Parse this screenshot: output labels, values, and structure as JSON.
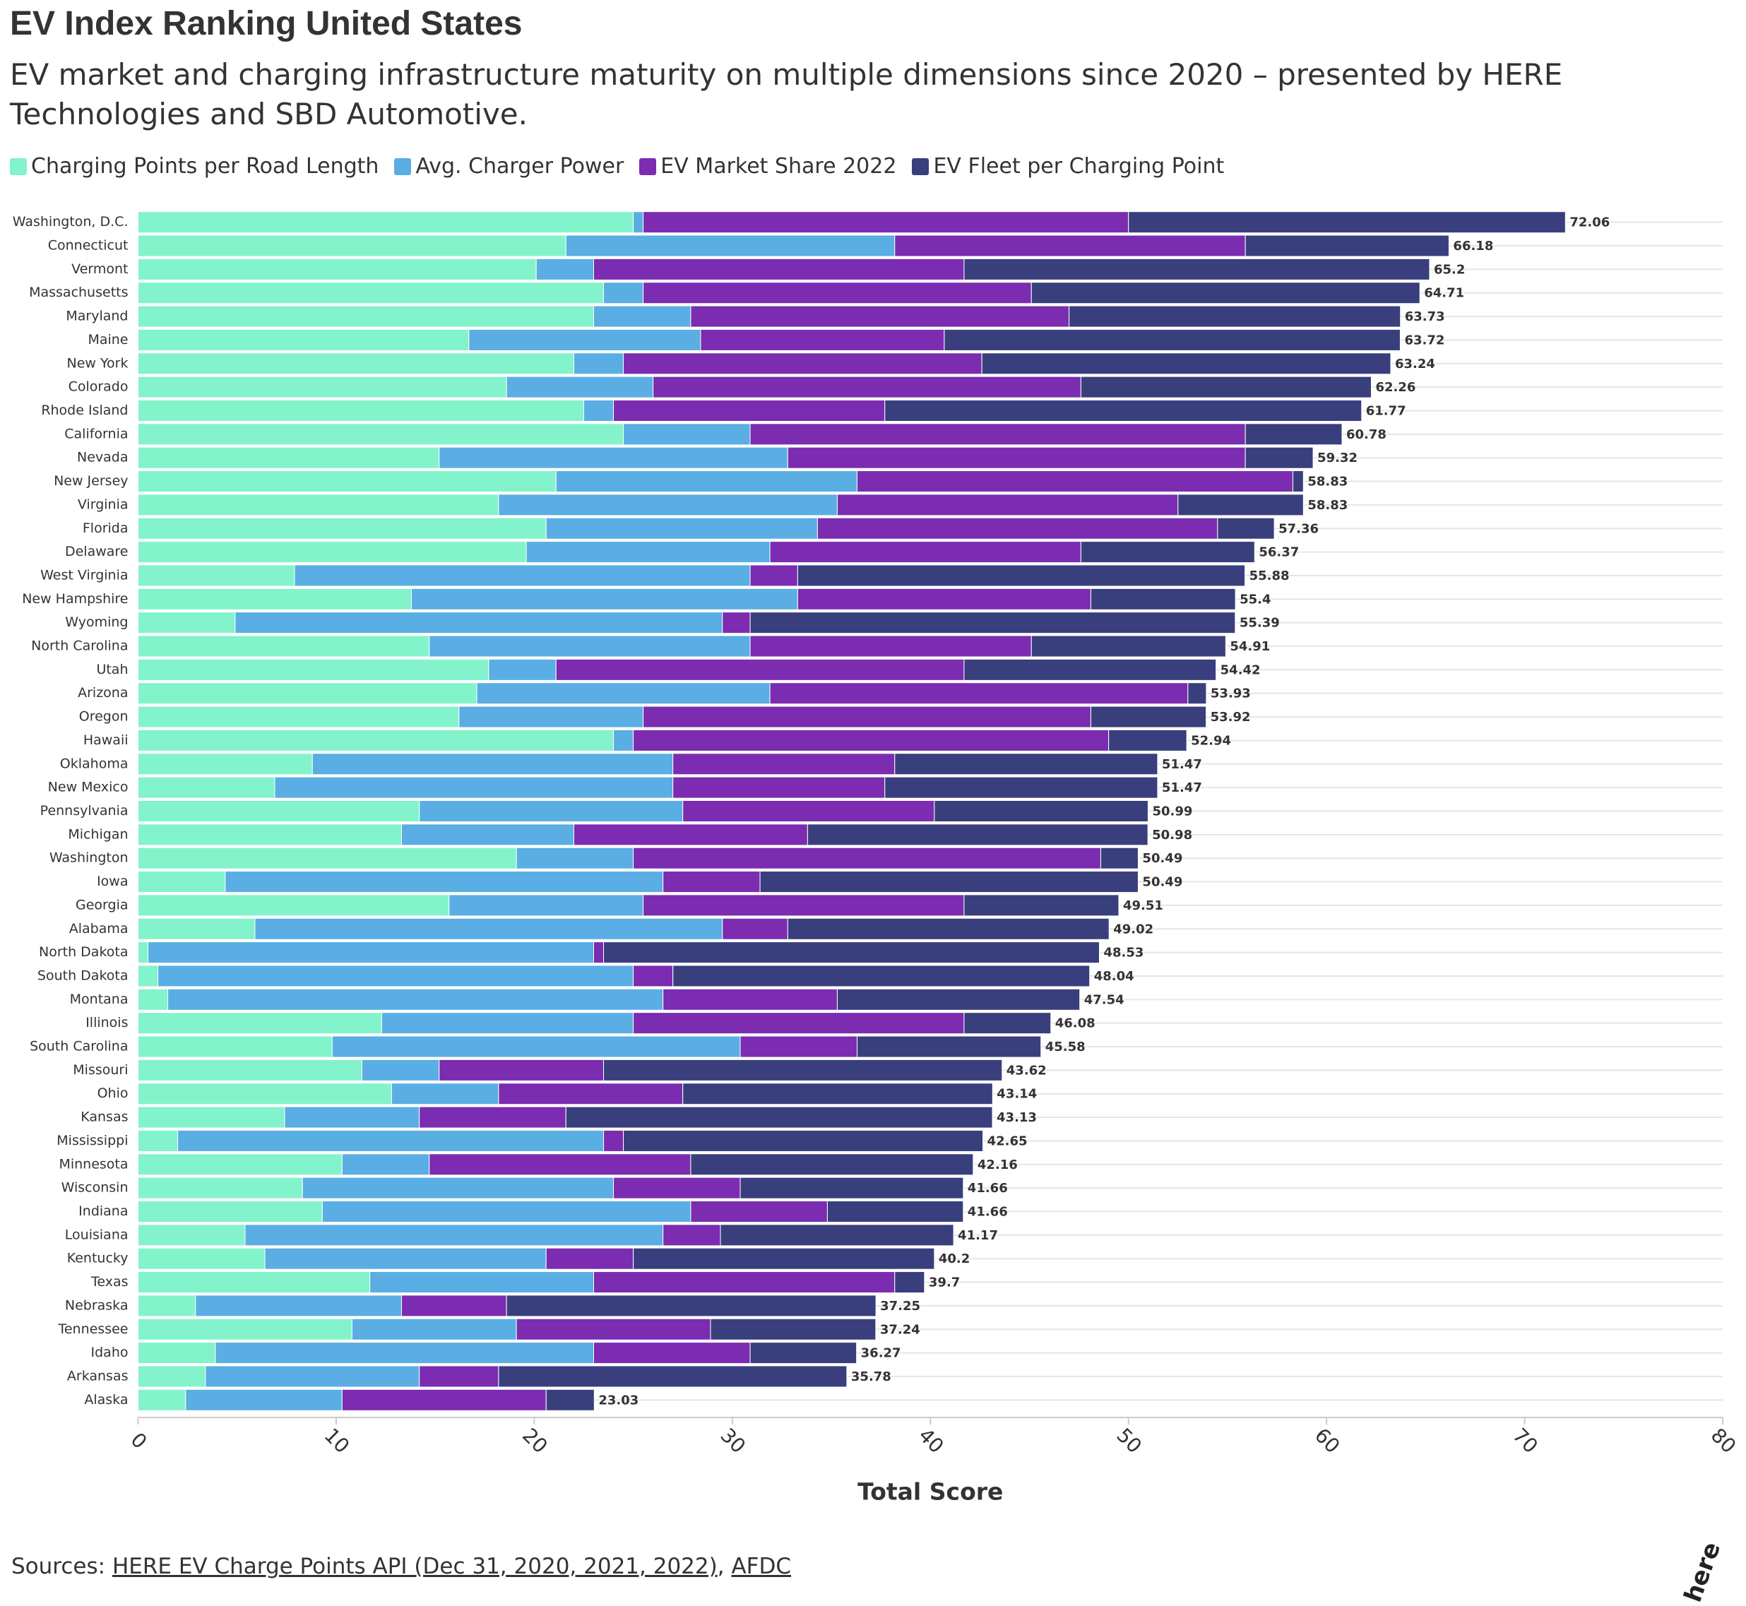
{
  "chart_data": {
    "type": "stacked_bar_horizontal",
    "title": "EV Index Ranking United States",
    "subtitle": "EV market and charging infrastructure maturity on multiple dimensions since 2020 – presented by HERE Technologies and SBD Automotive.",
    "x_label": "Total Score",
    "categories": [
      "Washington, D.C.",
      "Connecticut",
      "Vermont",
      "Massachusetts",
      "Maryland",
      "Maine",
      "New York",
      "Colorado",
      "Rhode Island",
      "California",
      "Nevada",
      "New Jersey",
      "Virginia",
      "Florida",
      "Delaware",
      "West Virginia",
      "New Hampshire",
      "Wyoming",
      "North Carolina",
      "Utah",
      "Arizona",
      "Oregon",
      "Hawaii",
      "Oklahoma",
      "New Mexico",
      "Pennsylvania",
      "Michigan",
      "Washington",
      "Iowa",
      "Georgia",
      "Alabama",
      "North Dakota",
      "South Dakota",
      "Montana",
      "Illinois",
      "South Carolina",
      "Missouri",
      "Ohio",
      "Kansas",
      "Mississippi",
      "Minnesota",
      "Wisconsin",
      "Indiana",
      "Louisiana",
      "Kentucky",
      "Texas",
      "Nebraska",
      "Tennessee",
      "Idaho",
      "Arkansas",
      "Alaska"
    ],
    "series": [
      {
        "name": "Charging Points per Road Length",
        "color": "#83f3cb",
        "values": [
          25.0,
          21.6,
          20.1,
          23.5,
          23.0,
          16.7,
          22.0,
          18.6,
          22.5,
          24.5,
          15.2,
          21.1,
          18.2,
          20.6,
          19.6,
          7.9,
          13.8,
          4.9,
          14.7,
          17.7,
          17.1,
          16.2,
          24.0,
          8.8,
          6.9,
          14.2,
          13.3,
          19.1,
          4.4,
          15.7,
          5.9,
          0.5,
          1.0,
          1.5,
          12.3,
          9.8,
          11.3,
          12.8,
          7.4,
          2.0,
          10.3,
          8.3,
          9.3,
          5.4,
          6.4,
          11.7,
          2.9,
          10.8,
          3.9,
          3.4,
          2.4
        ]
      },
      {
        "name": "Avg. Charger Power",
        "color": "#5aaee3",
        "values": [
          0.5,
          16.6,
          2.9,
          2.0,
          4.9,
          11.7,
          2.5,
          7.4,
          1.5,
          6.4,
          17.6,
          15.2,
          17.1,
          13.7,
          12.3,
          23.0,
          19.5,
          24.6,
          16.2,
          3.4,
          14.8,
          9.3,
          1.0,
          18.2,
          20.1,
          13.3,
          8.7,
          5.9,
          22.1,
          9.8,
          23.6,
          22.5,
          24.0,
          25.0,
          12.7,
          20.6,
          3.9,
          5.4,
          6.8,
          21.5,
          4.4,
          15.7,
          18.6,
          21.1,
          14.2,
          11.3,
          10.4,
          8.3,
          19.1,
          10.8,
          7.9
        ]
      },
      {
        "name": "EV Market Share 2022",
        "color": "#7b2cb0",
        "values": [
          24.5,
          17.7,
          18.7,
          19.6,
          19.1,
          12.3,
          18.1,
          21.6,
          13.7,
          25.0,
          23.1,
          22.0,
          17.2,
          20.2,
          15.7,
          2.4,
          14.8,
          1.4,
          14.2,
          20.6,
          21.1,
          22.6,
          24.0,
          11.2,
          10.7,
          12.7,
          11.8,
          23.6,
          4.9,
          16.2,
          3.3,
          0.5,
          2.0,
          8.8,
          16.7,
          5.9,
          8.3,
          9.3,
          7.4,
          1.0,
          13.2,
          6.4,
          6.9,
          2.9,
          4.4,
          15.2,
          5.3,
          9.8,
          7.9,
          4.0,
          10.3
        ]
      },
      {
        "name": "EV Fleet per Charging Point",
        "color": "#393f7d",
        "values": [
          22.06,
          10.28,
          23.5,
          19.61,
          16.73,
          23.02,
          20.64,
          14.66,
          24.07,
          4.88,
          3.42,
          0.53,
          6.33,
          2.86,
          8.77,
          22.58,
          7.3,
          24.49,
          9.81,
          12.72,
          0.93,
          5.82,
          3.94,
          13.27,
          13.77,
          10.79,
          17.18,
          1.89,
          19.09,
          7.81,
          16.22,
          25.03,
          21.04,
          12.24,
          4.38,
          9.28,
          20.12,
          15.64,
          21.53,
          18.15,
          14.26,
          11.26,
          6.86,
          11.77,
          15.2,
          1.5,
          18.65,
          8.34,
          5.37,
          17.58,
          2.43
        ]
      }
    ],
    "totals": [
      72.06,
      66.18,
      65.2,
      64.71,
      63.73,
      63.72,
      63.24,
      62.26,
      61.77,
      60.78,
      59.32,
      58.83,
      58.83,
      57.36,
      56.37,
      55.88,
      55.4,
      55.39,
      54.91,
      54.42,
      53.93,
      53.92,
      52.94,
      51.47,
      51.47,
      50.99,
      50.98,
      50.49,
      50.49,
      49.51,
      49.02,
      48.53,
      48.04,
      47.54,
      46.08,
      45.58,
      43.62,
      43.14,
      43.13,
      42.65,
      42.16,
      41.66,
      41.66,
      41.17,
      40.2,
      39.7,
      37.25,
      37.24,
      36.27,
      35.78,
      23.03
    ],
    "xlim": [
      0,
      80
    ],
    "xticks": [
      0,
      10,
      20,
      30,
      40,
      50,
      60,
      70,
      80
    ],
    "source": {
      "label": "Sources:",
      "links": [
        "HERE EV Charge Points API (Dec 31, 2020, 2021, 2022)",
        "AFDC"
      ],
      "separator": ","
    },
    "logo": "here"
  }
}
